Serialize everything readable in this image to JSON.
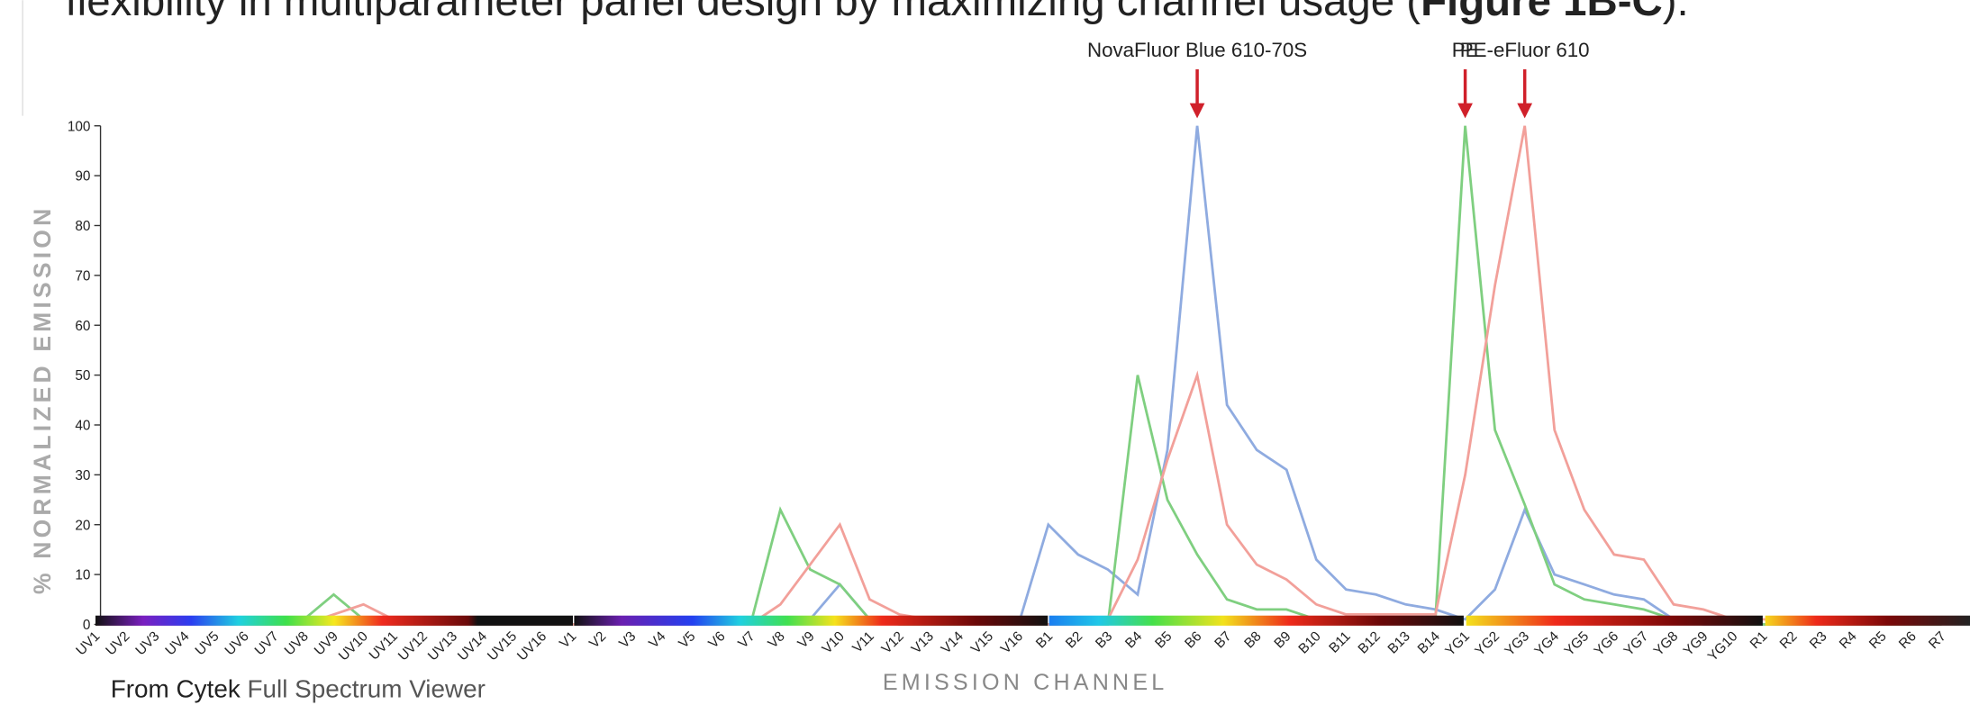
{
  "caption": {
    "text": "flexibility in multiparameter panel design by maximizing channel usage (",
    "bold": "Figure 1B-C",
    "end": ")."
  },
  "source": {
    "text": "From Cytek",
    "link": "Full Spectrum Viewer"
  },
  "chart_data": {
    "type": "line",
    "x_label": "EMISSION CHANNEL",
    "y_label": "% NORMALIZED EMISSION",
    "categories": [
      "UV1",
      "UV2",
      "UV3",
      "UV4",
      "UV5",
      "UV6",
      "UV7",
      "UV8",
      "UV9",
      "UV10",
      "UV11",
      "UV12",
      "UV13",
      "UV14",
      "UV15",
      "UV16",
      "V1",
      "V2",
      "V3",
      "V4",
      "V5",
      "V6",
      "V7",
      "V8",
      "V9",
      "V10",
      "V11",
      "V12",
      "V13",
      "V14",
      "V15",
      "V16",
      "B1",
      "B2",
      "B3",
      "B4",
      "B5",
      "B6",
      "B7",
      "B8",
      "B9",
      "B10",
      "B11",
      "B12",
      "B13",
      "B14",
      "YG1",
      "YG2",
      "YG3",
      "YG4",
      "YG5",
      "YG6",
      "YG7",
      "YG8",
      "YG9",
      "YG10",
      "R1",
      "R2",
      "R3",
      "R4",
      "R5",
      "R6",
      "R7"
    ],
    "ylim": [
      0,
      100
    ],
    "yticks": [
      0,
      10,
      20,
      30,
      40,
      50,
      60,
      70,
      80,
      90,
      100
    ],
    "series": [
      {
        "name": "NovaFluor Blue 610-70S",
        "color": "#8fabe0",
        "values": [
          0,
          0,
          0,
          0,
          0,
          0,
          0,
          0,
          0,
          0,
          0,
          0,
          0,
          0,
          0,
          0,
          0,
          0,
          0,
          0,
          0,
          0,
          0,
          0,
          1,
          8,
          1,
          0,
          0,
          0,
          0,
          0,
          20,
          14,
          11,
          6,
          35,
          100,
          44,
          35,
          31,
          13,
          7,
          6,
          4,
          3,
          1,
          7,
          23,
          10,
          8,
          6,
          5,
          1,
          0,
          0,
          0,
          0,
          0,
          0,
          0,
          0,
          0
        ]
      },
      {
        "name": "PE",
        "color": "#7fcf80",
        "values": [
          0,
          0,
          0,
          0,
          0,
          0,
          0,
          1,
          6,
          1,
          0,
          0,
          0,
          0,
          0,
          0,
          0,
          0,
          0,
          0,
          0,
          0,
          0,
          23,
          11,
          8,
          1,
          0,
          0,
          0,
          0,
          0,
          0,
          0,
          0,
          50,
          25,
          14,
          5,
          3,
          3,
          1,
          1,
          1,
          1,
          1,
          100,
          39,
          24,
          8,
          5,
          4,
          3,
          1,
          1,
          0,
          0,
          0,
          0,
          0,
          0,
          0,
          0
        ]
      },
      {
        "name": "PE-eFluor 610",
        "color": "#f2a09a",
        "values": [
          0,
          0,
          0,
          0,
          0,
          0,
          0,
          0,
          2,
          4,
          1,
          0,
          0,
          0,
          0,
          0,
          0,
          0,
          0,
          0,
          0,
          0,
          0,
          4,
          12,
          20,
          5,
          2,
          1,
          0,
          0,
          0,
          0,
          0,
          1,
          13,
          33,
          50,
          20,
          12,
          9,
          4,
          2,
          2,
          2,
          2,
          30,
          68,
          100,
          39,
          23,
          14,
          13,
          4,
          3,
          1,
          1,
          1,
          1,
          1,
          1,
          1,
          1
        ]
      }
    ]
  }
}
